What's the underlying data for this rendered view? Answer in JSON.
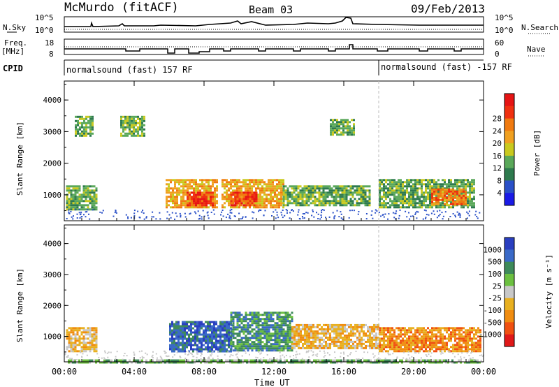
{
  "header": {
    "station": "McMurdo (fitACF)",
    "beam": "Beam 03",
    "date": "09/Feb/2013"
  },
  "top_panels": {
    "nsky_label": "N.Sky",
    "nsky_ticks": [
      "10^5",
      "10^0"
    ],
    "nsearch_label": "N.Search",
    "nsearch_ticks": [
      "10^5",
      "10^0"
    ],
    "freq_label_1": "Freq.",
    "freq_label_2": "[MHz]",
    "freq_ticks": [
      "18",
      "8"
    ],
    "nave_label": "Nave",
    "nave_ticks": [
      "60",
      "0"
    ],
    "cpid_label": "CPID",
    "cpid_segments": [
      {
        "name": "normalsound (fast) 157 RF",
        "start_hour": 0,
        "end_hour": 18
      },
      {
        "name": "normalsound (fast) -157 RF",
        "start_hour": 18,
        "end_hour": 24
      }
    ]
  },
  "x_axis": {
    "label": "Time UT",
    "ticks": [
      "00:00",
      "04:00",
      "08:00",
      "12:00",
      "16:00",
      "20:00",
      "00:00"
    ]
  },
  "chart_data": [
    {
      "type": "heatmap",
      "title": "",
      "xlabel": "Time UT",
      "ylabel": "Slant Range [km]",
      "xlim_hours": [
        0,
        24
      ],
      "ylim": [
        180,
        4600
      ],
      "yticks": [
        "1000",
        "2000",
        "3000",
        "4000"
      ],
      "colorbar": {
        "label": "Power [dB]",
        "ticks": [
          "4",
          "8",
          "12",
          "16",
          "20",
          "24",
          "28"
        ],
        "range": [
          0,
          30
        ],
        "colors": [
          "#1a1ae6",
          "#2a50c8",
          "#2e7a4e",
          "#5aa85a",
          "#c9c91e",
          "#f0a020",
          "#f07a10",
          "#f03010",
          "#e61414"
        ]
      },
      "regions": [
        {
          "t0": 0.1,
          "t1": 1.9,
          "r0": 550,
          "r1": 1300,
          "level": 10
        },
        {
          "t0": 0.6,
          "t1": 1.6,
          "r0": 2900,
          "r1": 3500,
          "level": 11
        },
        {
          "t0": 3.2,
          "t1": 4.6,
          "r0": 2900,
          "r1": 3500,
          "level": 11
        },
        {
          "t0": 5.8,
          "t1": 8.8,
          "r0": 600,
          "r1": 1500,
          "level": 18
        },
        {
          "t0": 7.0,
          "t1": 8.5,
          "r0": 700,
          "r1": 1100,
          "level": 26
        },
        {
          "t0": 9.0,
          "t1": 12.5,
          "r0": 600,
          "r1": 1500,
          "level": 18
        },
        {
          "t0": 9.5,
          "t1": 11.0,
          "r0": 700,
          "r1": 1100,
          "level": 27
        },
        {
          "t0": 12.5,
          "t1": 17.5,
          "r0": 650,
          "r1": 1300,
          "level": 10
        },
        {
          "t0": 15.2,
          "t1": 16.6,
          "r0": 2900,
          "r1": 3400,
          "level": 11
        },
        {
          "t0": 18.0,
          "t1": 23.5,
          "r0": 600,
          "r1": 1500,
          "level": 13
        },
        {
          "t0": 21.0,
          "t1": 23.0,
          "r0": 700,
          "r1": 1200,
          "level": 22
        }
      ]
    },
    {
      "type": "heatmap",
      "title": "",
      "xlabel": "Time UT",
      "ylabel": "Slant Range [km]",
      "xlim_hours": [
        0,
        24
      ],
      "ylim": [
        180,
        4600
      ],
      "yticks": [
        "1000",
        "2000",
        "3000",
        "4000"
      ],
      "colorbar": {
        "label": "Velocity [m s⁻¹]",
        "ticks": [
          "1000",
          "500",
          "100",
          "25",
          "-25",
          "-100",
          "-500",
          "-1000"
        ],
        "colors": [
          "#2a3fc0",
          "#3a6ac8",
          "#3e8a5a",
          "#6cc040",
          "#c8c8c8",
          "#e8b020",
          "#f08c10",
          "#f05010",
          "#e01818"
        ]
      },
      "regions": [
        {
          "t0": 0.1,
          "t1": 1.9,
          "r0": 550,
          "r1": 1300,
          "class": "-100"
        },
        {
          "t0": 6.0,
          "t1": 9.5,
          "r0": 550,
          "r1": 1500,
          "class": "500"
        },
        {
          "t0": 9.5,
          "t1": 13.0,
          "r0": 550,
          "r1": 1800,
          "class": "100"
        },
        {
          "t0": 13.0,
          "t1": 18.0,
          "r0": 650,
          "r1": 1400,
          "class": "-100"
        },
        {
          "t0": 18.0,
          "t1": 23.8,
          "r0": 550,
          "r1": 1300,
          "class": "-500"
        },
        {
          "t0": 0.2,
          "t1": 23.8,
          "r0": 180,
          "r1": 260,
          "class": "25"
        }
      ]
    }
  ]
}
